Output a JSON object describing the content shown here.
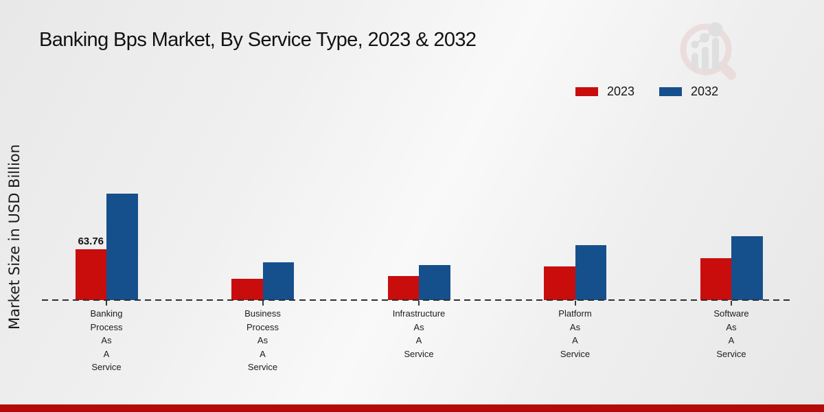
{
  "header": {
    "title": "Banking Bps Market, By Service Type, 2023 & 2032"
  },
  "branding": {
    "logo_icon": "magnifier-bar-chart-watermark-icon",
    "logo_pink": "#e9cdcd",
    "logo_gray": "#d2d2d2",
    "footer_accent_color": "#b60909"
  },
  "chart_data": {
    "type": "bar",
    "title": "Banking Bps Market, By Service Type, 2023 & 2032",
    "xlabel": "",
    "ylabel": "Market Size in USD Billion",
    "categories": [
      "Banking Process As A Service",
      "Business Process As A Service",
      "Infrastructure As A Service",
      "Platform As A Service",
      "Software As A Service"
    ],
    "series": [
      {
        "name": "2023",
        "color": "#c90d0d",
        "values": [
          63.76,
          27,
          30.5,
          42,
          53
        ]
      },
      {
        "name": "2032",
        "color": "#15508d",
        "values": [
          134.5,
          48,
          44.5,
          69,
          80.5
        ]
      }
    ],
    "annotations": [
      {
        "series_index": 0,
        "category_index": 0,
        "text": "63.76"
      }
    ],
    "ylim": [
      0,
      150
    ],
    "grid": false,
    "legend_position": "top-right",
    "baseline_style": "dashed"
  }
}
